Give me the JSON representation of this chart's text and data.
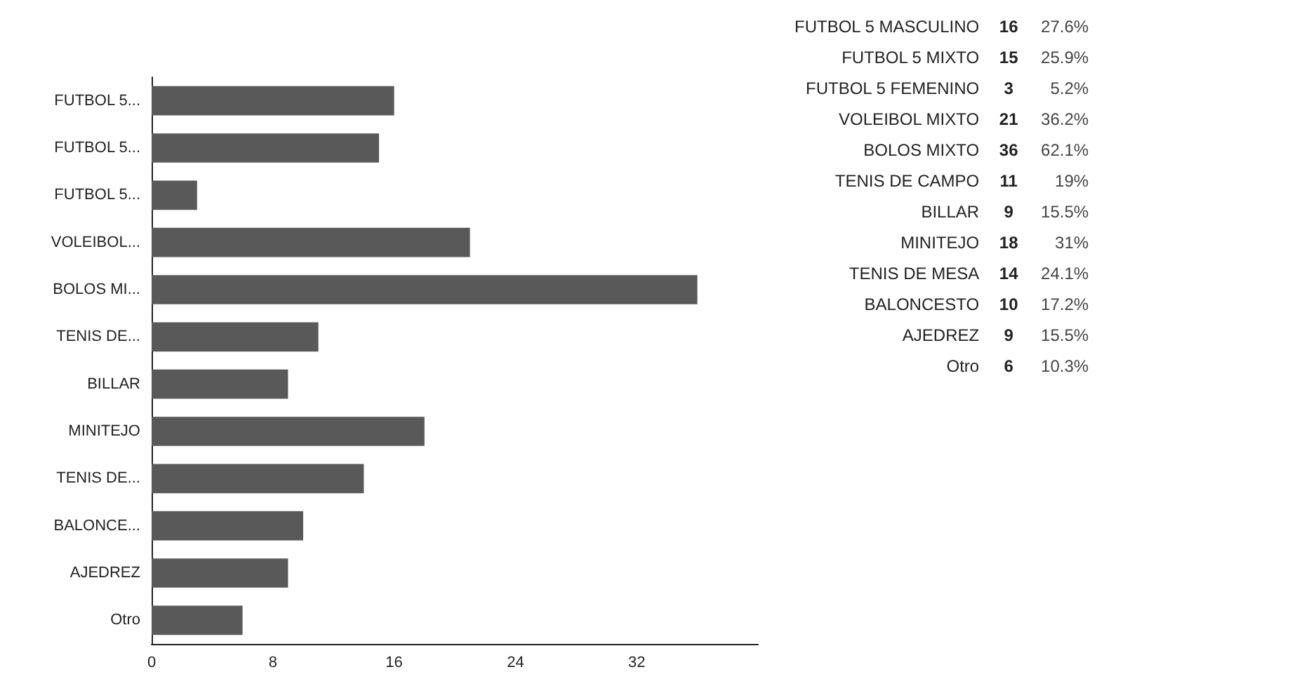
{
  "chart_data": [
    {
      "type": "bar",
      "orientation": "horizontal",
      "categories": [
        "FUTBOL 5...",
        "FUTBOL 5...",
        "FUTBOL 5...",
        "VOLEIBOL...",
        "BOLOS MI...",
        "TENIS DE...",
        "BILLAR",
        "MINITEJO",
        "TENIS DE...",
        "BALONCE...",
        "AJEDREZ",
        "Otro"
      ],
      "values": [
        16,
        15,
        3,
        21,
        36,
        11,
        9,
        18,
        14,
        10,
        9,
        6
      ],
      "color": "#595959",
      "xlim": [
        0,
        40
      ],
      "xticks": [
        0,
        8,
        16,
        24,
        32
      ],
      "grid": false
    },
    {
      "type": "other",
      "data_labels": true,
      "categories": [
        "FUTBOL 5 MASCULINO",
        "FUTBOL 5 MIXTO",
        "FUTBOL 5 FEMENINO",
        "VOLEIBOL MIXTO",
        "BOLOS MIXTO",
        "TENIS DE CAMPO",
        "BILLAR",
        "MINITEJO",
        "TENIS DE MESA",
        "BALONCESTO",
        "AJEDREZ",
        "Otro"
      ],
      "series": [
        {
          "values": [
            16,
            15,
            3,
            21,
            36,
            11,
            9,
            18,
            14,
            10,
            9,
            6
          ]
        },
        {
          "values": [
            27.6,
            25.9,
            5.2,
            36.2,
            62.1,
            19,
            15.5,
            31,
            24.1,
            17.2,
            15.5,
            10.3
          ],
          "value_labels": [
            "27.6%",
            "25.9%",
            "5.2%",
            "36.2%",
            "62.1%",
            "19%",
            "15.5%",
            "31%",
            "24.1%",
            "17.2%",
            "15.5%",
            "10.3%"
          ]
        }
      ]
    }
  ]
}
